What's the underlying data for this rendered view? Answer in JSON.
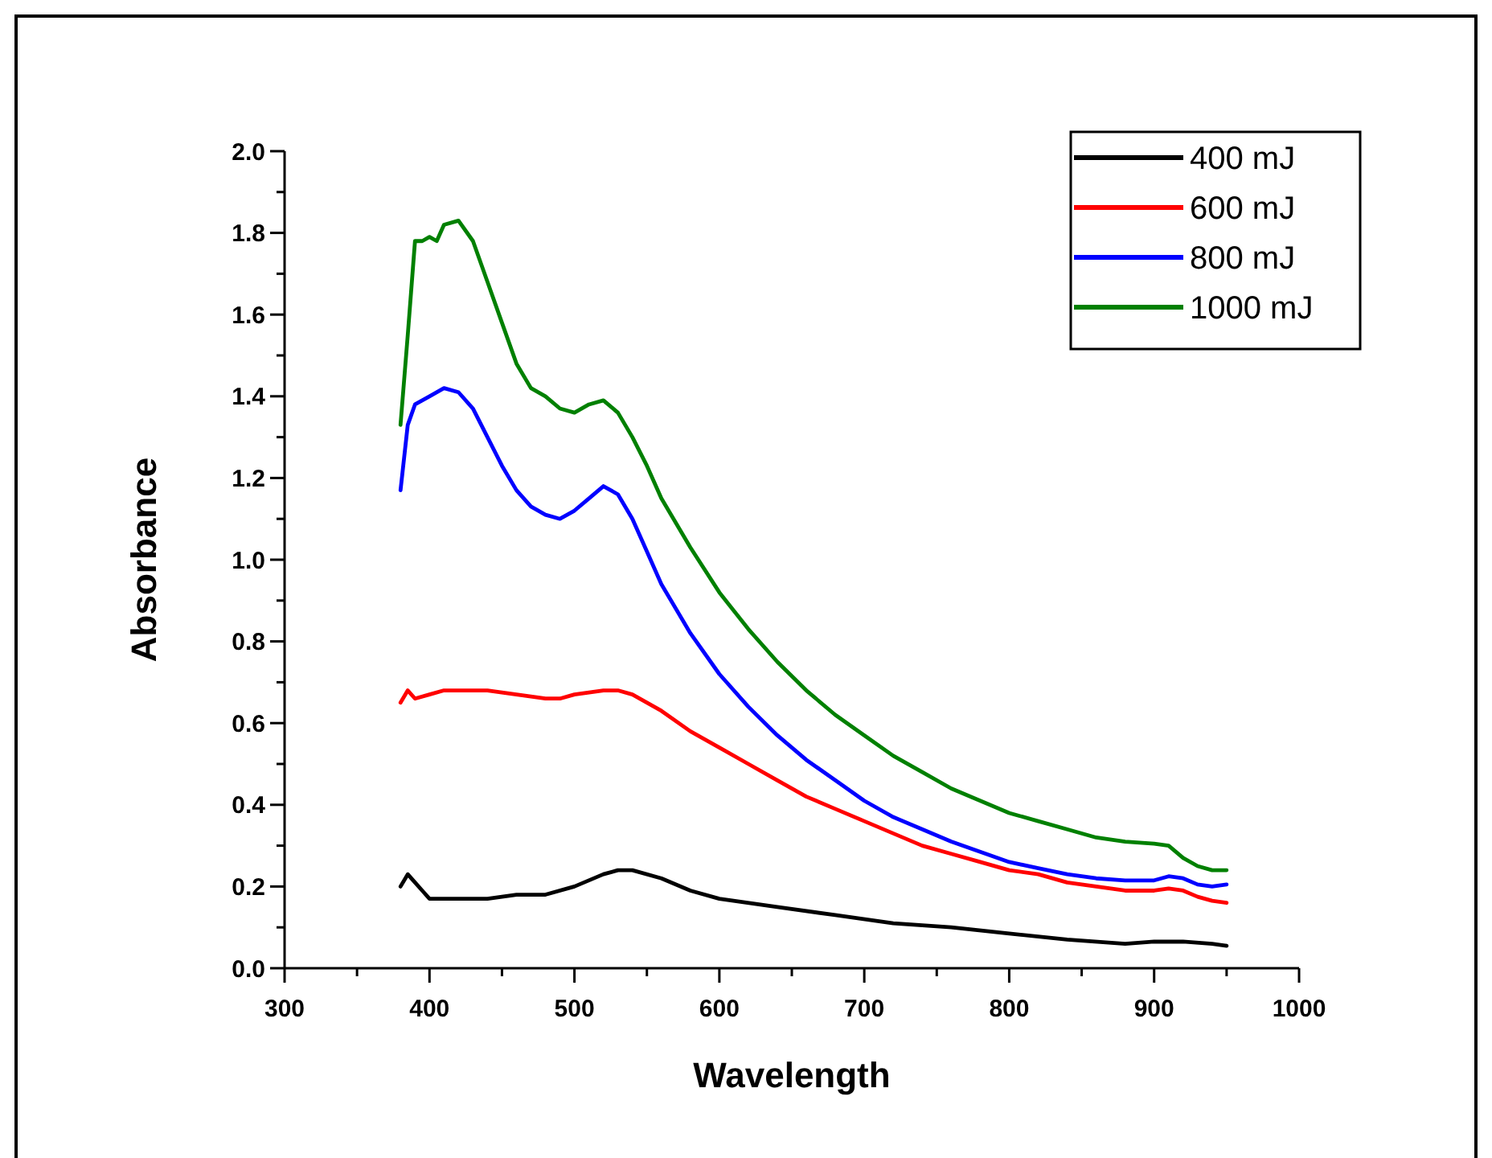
{
  "chart_data": {
    "type": "line",
    "xlabel": "Wavelength",
    "ylabel": "Absorbance",
    "xlim": [
      300,
      1000
    ],
    "ylim": [
      0,
      2
    ],
    "xticks": [
      300,
      {
        "value": 350,
        "label": null
      },
      400,
      {
        "value": 450,
        "label": null
      },
      500,
      {
        "value": 550,
        "label": null
      },
      600,
      {
        "value": 650,
        "label": null
      },
      700,
      {
        "value": 750,
        "label": null
      },
      800,
      {
        "value": 850,
        "label": null
      },
      900,
      {
        "value": 950,
        "label": null
      },
      1000
    ],
    "yticks": [
      "0.0",
      {
        "value": 0.1,
        "label": null
      },
      0.2,
      {
        "value": 0.3,
        "label": null
      },
      0.4,
      {
        "value": 0.5,
        "label": null
      },
      0.6,
      {
        "value": 0.7,
        "label": null
      },
      0.8,
      {
        "value": 0.9,
        "label": null
      },
      {
        "value": 1,
        "label": "1.0"
      },
      {
        "value": 1.1,
        "label": null
      },
      1.2,
      {
        "value": 1.3,
        "label": null
      },
      1.4,
      {
        "value": 1.5,
        "label": null
      },
      1.6,
      {
        "value": 1.7,
        "label": null
      },
      1.8,
      {
        "value": 1.9,
        "label": null
      },
      {
        "value": 2,
        "label": "2.0"
      }
    ],
    "grid": false,
    "legend": "top right",
    "marker": "none",
    "line_style": "solid",
    "series": [
      {
        "name": "400 mJ",
        "color": "#000000",
        "x": [
          380,
          385,
          390,
          395,
          400,
          420,
          440,
          460,
          480,
          500,
          520,
          530,
          540,
          560,
          580,
          600,
          640,
          680,
          720,
          760,
          800,
          840,
          880,
          900,
          920,
          940,
          950
        ],
        "values": [
          0.2,
          0.23,
          0.21,
          0.19,
          0.17,
          0.17,
          0.17,
          0.18,
          0.18,
          0.2,
          0.23,
          0.24,
          0.24,
          0.22,
          0.19,
          0.17,
          0.15,
          0.13,
          0.11,
          0.1,
          0.085,
          0.07,
          0.06,
          0.065,
          0.065,
          0.06,
          0.055
        ]
      },
      {
        "name": "600 mJ",
        "color": "#ff0000",
        "x": [
          380,
          385,
          390,
          400,
          410,
          420,
          440,
          460,
          480,
          490,
          500,
          520,
          530,
          540,
          560,
          580,
          600,
          620,
          640,
          660,
          680,
          700,
          720,
          740,
          760,
          780,
          800,
          820,
          840,
          860,
          880,
          900,
          910,
          920,
          930,
          940,
          950
        ],
        "values": [
          0.65,
          0.68,
          0.66,
          0.67,
          0.68,
          0.68,
          0.68,
          0.67,
          0.66,
          0.66,
          0.67,
          0.68,
          0.68,
          0.67,
          0.63,
          0.58,
          0.54,
          0.5,
          0.46,
          0.42,
          0.39,
          0.36,
          0.33,
          0.3,
          0.28,
          0.26,
          0.24,
          0.23,
          0.21,
          0.2,
          0.19,
          0.19,
          0.195,
          0.19,
          0.175,
          0.165,
          0.16
        ]
      },
      {
        "name": "800 mJ",
        "color": "#0000ff",
        "x": [
          380,
          385,
          390,
          400,
          410,
          420,
          430,
          440,
          450,
          460,
          470,
          480,
          490,
          500,
          510,
          520,
          530,
          540,
          550,
          560,
          580,
          600,
          620,
          640,
          660,
          680,
          700,
          720,
          740,
          760,
          780,
          800,
          820,
          840,
          860,
          880,
          900,
          910,
          920,
          930,
          940,
          950
        ],
        "values": [
          1.17,
          1.33,
          1.38,
          1.4,
          1.42,
          1.41,
          1.37,
          1.3,
          1.23,
          1.17,
          1.13,
          1.11,
          1.1,
          1.12,
          1.15,
          1.18,
          1.16,
          1.1,
          1.02,
          0.94,
          0.82,
          0.72,
          0.64,
          0.57,
          0.51,
          0.46,
          0.41,
          0.37,
          0.34,
          0.31,
          0.285,
          0.26,
          0.245,
          0.23,
          0.22,
          0.215,
          0.215,
          0.225,
          0.22,
          0.205,
          0.2,
          0.205
        ]
      },
      {
        "name": "1000 mJ",
        "color": "#008000",
        "x": [
          380,
          385,
          390,
          395,
          400,
          405,
          410,
          420,
          430,
          440,
          450,
          460,
          470,
          480,
          490,
          500,
          510,
          520,
          530,
          540,
          550,
          560,
          580,
          600,
          620,
          640,
          660,
          680,
          700,
          720,
          740,
          760,
          780,
          800,
          820,
          840,
          860,
          880,
          900,
          910,
          920,
          930,
          940,
          950
        ],
        "values": [
          1.33,
          1.55,
          1.78,
          1.78,
          1.79,
          1.78,
          1.82,
          1.83,
          1.78,
          1.68,
          1.58,
          1.48,
          1.42,
          1.4,
          1.37,
          1.36,
          1.38,
          1.39,
          1.36,
          1.3,
          1.23,
          1.15,
          1.03,
          0.92,
          0.83,
          0.75,
          0.68,
          0.62,
          0.57,
          0.52,
          0.48,
          0.44,
          0.41,
          0.38,
          0.36,
          0.34,
          0.32,
          0.31,
          0.305,
          0.3,
          0.27,
          0.25,
          0.24,
          0.24
        ]
      }
    ]
  }
}
